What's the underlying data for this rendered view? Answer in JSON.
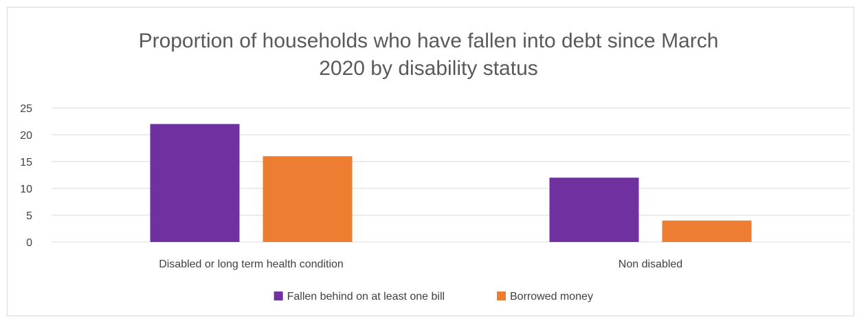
{
  "chart_data": {
    "type": "bar",
    "title_lines": [
      "Proportion of households who have fallen into debt since March",
      "2020 by disability status"
    ],
    "categories": [
      "Disabled or long term health condition",
      "Non disabled"
    ],
    "series": [
      {
        "name": "Fallen behind on at least one bill",
        "color": "#7030a0",
        "values": [
          22,
          12
        ]
      },
      {
        "name": "Borrowed money",
        "color": "#ed7d31",
        "values": [
          16,
          4
        ]
      }
    ],
    "yticks": [
      "0",
      "5",
      "10",
      "15",
      "20",
      "25"
    ],
    "ylim": [
      0,
      25
    ],
    "grid": true,
    "legend_position": "bottom"
  }
}
